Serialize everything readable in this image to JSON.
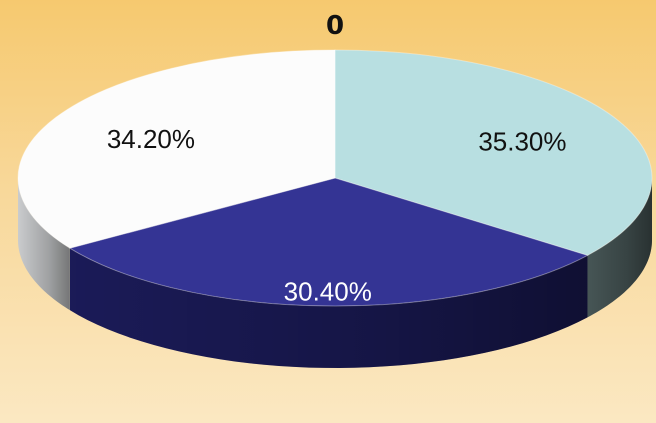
{
  "chart_data": {
    "type": "pie",
    "title": "0",
    "labels": [
      "",
      "",
      ""
    ],
    "values": [
      35.3,
      30.4,
      34.2
    ],
    "data_labels": [
      "35.30%",
      "30.40%",
      "34.20%"
    ],
    "colors": [
      "#b8dfe1",
      "#343494",
      "#fcfcfc"
    ],
    "side_colors": [
      "#4a5a5a",
      "#1c1c5c",
      "#d4d6d8"
    ],
    "three_d": true,
    "legend": "none"
  }
}
